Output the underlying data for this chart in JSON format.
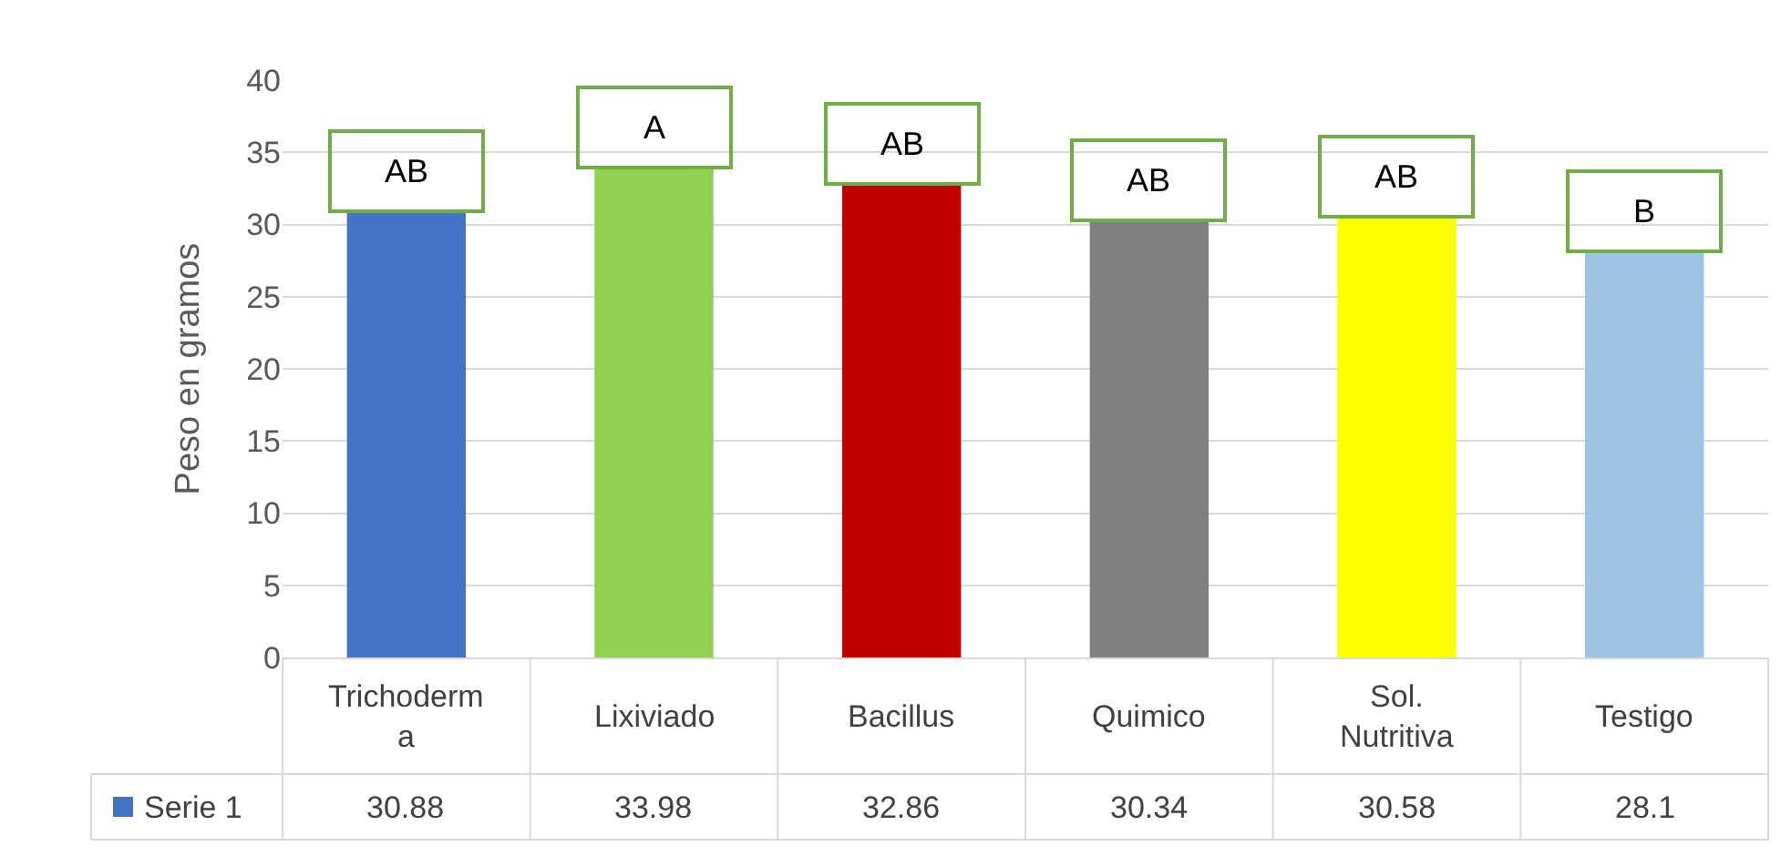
{
  "chart_data": {
    "type": "bar",
    "ylabel": "Peso en gramos",
    "categories": [
      "Trichoderma",
      "Lixiviado",
      "Bacillus",
      "Quimico",
      "Sol. Nutritiva",
      "Testigo"
    ],
    "series": [
      {
        "name": "Serie 1",
        "color": "#4472c4",
        "colors": [
          "#4472c4",
          "#92d050",
          "#c00000",
          "#808080",
          "#ffff00",
          "#9dc3e6"
        ],
        "values": [
          30.88,
          33.98,
          32.86,
          30.34,
          30.58,
          28.1
        ]
      }
    ],
    "ylim": [
      0,
      40
    ],
    "yticks": [
      0,
      5,
      10,
      15,
      20,
      25,
      30,
      35,
      40
    ],
    "grid": "y",
    "legend": "bottom",
    "data_labels": true,
    "annotations": [
      "AB",
      "A",
      "AB",
      "AB",
      "AB",
      "B"
    ]
  }
}
